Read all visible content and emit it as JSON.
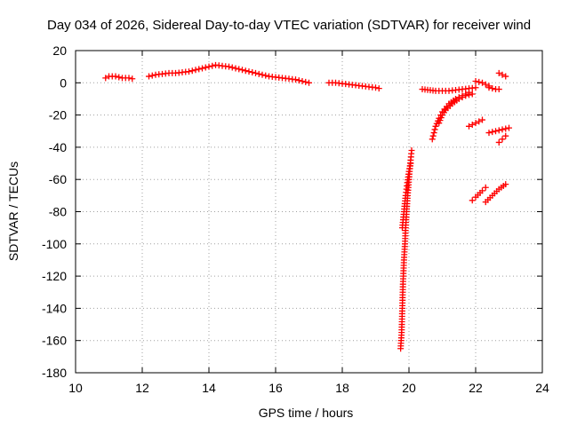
{
  "chart_data": {
    "type": "scatter",
    "title": "Day 034 of 2026, Sidereal Day-to-day VTEC variation (SDTVAR) for receiver wind",
    "xlabel": "GPS time / hours",
    "ylabel": "SDTVAR / TECUs",
    "xlim": [
      10,
      24
    ],
    "ylim": [
      -180,
      20
    ],
    "xticks": [
      10,
      12,
      14,
      16,
      18,
      20,
      22,
      24
    ],
    "yticks": [
      20,
      0,
      -20,
      -40,
      -60,
      -80,
      -100,
      -120,
      -140,
      -160,
      -180
    ],
    "grid": true,
    "marker": "+",
    "color": "#ff0000",
    "series": [
      {
        "name": "segment-1",
        "x": [
          10.9,
          11.0,
          11.1,
          11.2,
          11.3,
          11.4,
          11.5,
          11.6,
          11.7
        ],
        "y": [
          3,
          4,
          4,
          4,
          3.5,
          3,
          3,
          3,
          2.5
        ]
      },
      {
        "name": "segment-2",
        "x": [
          12.2,
          12.4,
          12.6,
          12.8,
          13.0,
          13.2,
          13.4,
          13.6,
          13.8,
          14.0,
          14.2,
          14.4,
          14.6,
          14.8,
          15.0,
          15.2,
          15.4,
          15.6,
          15.8,
          16.0,
          16.2,
          16.4,
          16.6,
          16.8,
          17.0
        ],
        "y": [
          4,
          5,
          5.5,
          6,
          6,
          6.5,
          7,
          8,
          9,
          10,
          11,
          10.5,
          10,
          9,
          8,
          7,
          6,
          5,
          4,
          3.5,
          3,
          2.5,
          2,
          1,
          0
        ]
      },
      {
        "name": "segment-3",
        "x": [
          17.6,
          17.8,
          18.0,
          18.2,
          18.4,
          18.6,
          18.8,
          19.0,
          19.1
        ],
        "y": [
          0,
          0,
          -0.5,
          -1,
          -1.5,
          -2,
          -2.5,
          -3,
          -3.5
        ]
      },
      {
        "name": "segment-4",
        "x": [
          19.75,
          19.78,
          19.8,
          19.82,
          19.85,
          19.88,
          19.9,
          19.93,
          19.96,
          20.0,
          20.02,
          20.05,
          20.08
        ],
        "y": [
          -165,
          -155,
          -140,
          -125,
          -110,
          -100,
          -90,
          -80,
          -70,
          -60,
          -55,
          -48,
          -42
        ]
      },
      {
        "name": "segment-5",
        "x": [
          19.8,
          19.85,
          19.9,
          19.95,
          20.0,
          20.05
        ],
        "y": [
          -90,
          -80,
          -70,
          -62,
          -55,
          -50
        ]
      },
      {
        "name": "segment-6",
        "x": [
          20.4,
          20.8,
          21.0,
          21.2,
          21.4,
          21.6,
          21.8,
          22.0
        ],
        "y": [
          -4,
          -5,
          -5,
          -5,
          -4.5,
          -4,
          -3.5,
          -3
        ]
      },
      {
        "name": "segment-7",
        "x": [
          20.7,
          20.8,
          20.9,
          21.0,
          21.2,
          21.4,
          21.6,
          21.8
        ],
        "y": [
          -35,
          -27,
          -22,
          -18,
          -13,
          -10,
          -8,
          -6
        ]
      },
      {
        "name": "segment-8",
        "x": [
          20.9,
          21.0,
          21.1,
          21.3,
          21.5,
          21.7,
          21.9
        ],
        "y": [
          -25,
          -20,
          -17,
          -13,
          -10,
          -8,
          -7
        ]
      },
      {
        "name": "segment-9",
        "x": [
          22.0,
          22.2,
          22.4
        ],
        "y": [
          1,
          0,
          -2
        ]
      },
      {
        "name": "segment-10",
        "x": [
          22.4,
          22.6,
          22.7
        ],
        "y": [
          -3,
          -4,
          -4
        ]
      },
      {
        "name": "segment-11",
        "x": [
          21.8,
          22.0,
          22.2
        ],
        "y": [
          -27,
          -25,
          -23
        ]
      },
      {
        "name": "segment-12",
        "x": [
          22.4,
          22.6,
          22.8,
          23.0
        ],
        "y": [
          -31,
          -30,
          -29,
          -28
        ]
      },
      {
        "name": "segment-13",
        "x": [
          22.7,
          22.8,
          22.9
        ],
        "y": [
          -37,
          -35,
          -33
        ]
      },
      {
        "name": "segment-14",
        "x": [
          22.7,
          22.8,
          22.9
        ],
        "y": [
          6,
          5,
          4
        ]
      },
      {
        "name": "segment-15",
        "x": [
          21.9,
          22.0,
          22.2,
          22.3
        ],
        "y": [
          -73,
          -71,
          -67,
          -65
        ]
      },
      {
        "name": "segment-16",
        "x": [
          22.3,
          22.5,
          22.7,
          22.9
        ],
        "y": [
          -74,
          -70,
          -66,
          -63
        ]
      }
    ]
  }
}
